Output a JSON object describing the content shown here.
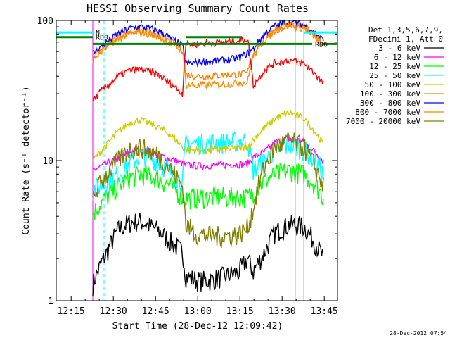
{
  "chart_data": {
    "type": "line",
    "title": "HESSI Observing Summary Count Rates",
    "xlabel": "Start Time (28-Dec-12 12:09:42)",
    "ylabel": "Count Rate (s⁻¹ detector⁻¹)",
    "yscale": "log",
    "ylim": [
      1,
      100
    ],
    "xlim_minutes": [
      0,
      100
    ],
    "x_ticks": [
      "12:15",
      "12:30",
      "12:45",
      "13:00",
      "13:15",
      "13:30",
      "13:45"
    ],
    "y_ticks": [
      "1",
      "10",
      "100"
    ],
    "legend_header": [
      "Det 1,3,5,6,7,9,",
      "FDecimi 1, Att 0"
    ],
    "footer_timestamp": "28-Dec-2012 07:54",
    "annotations": [
      "N",
      "RD0",
      "RD6"
    ],
    "series": [
      {
        "name": "3 - 6 keV",
        "color": "#000000",
        "x": [
          13,
          18,
          22,
          26,
          30,
          36,
          41,
          45,
          46,
          50,
          55,
          60,
          65,
          68,
          70,
          74,
          78,
          83,
          88,
          92,
          95
        ],
        "y": [
          1.3,
          2.2,
          3.2,
          3.6,
          3.7,
          3.2,
          2.6,
          2.2,
          1.5,
          1.4,
          1.4,
          1.5,
          1.6,
          2.0,
          1.6,
          2.2,
          3.1,
          3.5,
          3.4,
          2.6,
          2.0
        ]
      },
      {
        "name": "6 - 12 keV",
        "color": "#ff00ff",
        "x": [
          13,
          18,
          22,
          26,
          30,
          36,
          41,
          45,
          46,
          50,
          55,
          60,
          65,
          68,
          70,
          74,
          78,
          83,
          88,
          92,
          95
        ],
        "y": [
          8.5,
          9.5,
          10.3,
          11.5,
          12,
          11,
          10.2,
          9.5,
          9.3,
          9.2,
          9.2,
          9.3,
          9.4,
          9.5,
          10.5,
          11.5,
          13.5,
          14.5,
          13.5,
          11.5,
          10
        ]
      },
      {
        "name": "12 - 25 keV",
        "color": "#00ff00",
        "x": [
          13,
          18,
          22,
          26,
          30,
          36,
          41,
          45,
          46,
          50,
          55,
          60,
          65,
          68,
          70,
          74,
          78,
          83,
          88,
          92,
          95
        ],
        "y": [
          4.2,
          5.5,
          6.5,
          7.5,
          8,
          7.5,
          6.5,
          5.5,
          5.4,
          5.4,
          5.5,
          5.5,
          5.5,
          5.5,
          6,
          7.2,
          8,
          8.5,
          8,
          6.8,
          5.5
        ]
      },
      {
        "name": "25 - 50 keV",
        "color": "#00ffff",
        "x": [
          13,
          18,
          22,
          26,
          30,
          36,
          41,
          45,
          46,
          50,
          55,
          60,
          65,
          68,
          70,
          74,
          78,
          83,
          88,
          92,
          95
        ],
        "y": [
          6.2,
          7,
          8,
          9.5,
          11,
          10,
          8.2,
          7,
          13.2,
          13.3,
          13.5,
          13.5,
          13.8,
          14,
          8.5,
          10,
          12,
          13,
          12,
          10,
          8
        ]
      },
      {
        "name": "50 - 100 keV",
        "color": "#cccc00",
        "x": [
          13,
          18,
          22,
          26,
          30,
          36,
          41,
          45,
          46,
          50,
          55,
          60,
          65,
          68,
          70,
          74,
          78,
          83,
          88,
          92,
          95
        ],
        "y": [
          10,
          13,
          16,
          18.5,
          19.5,
          17.5,
          15,
          12.5,
          12,
          11.8,
          11.8,
          12,
          12.2,
          12.5,
          14,
          17,
          20,
          22,
          20,
          16,
          13
        ]
      },
      {
        "name": "100 - 300 keV",
        "color": "#ff8000",
        "x": [
          13,
          18,
          22,
          26,
          30,
          36,
          41,
          45,
          46,
          50,
          55,
          60,
          65,
          68,
          70,
          74,
          78,
          83,
          88,
          92,
          95
        ],
        "y": [
          55,
          67,
          77,
          83,
          85,
          80,
          70,
          62,
          41,
          40,
          40,
          41,
          41,
          42,
          58,
          75,
          88,
          95,
          90,
          78,
          68
        ]
      },
      {
        "name": "300 - 800 keV",
        "color": "#0000ff",
        "x": [
          13,
          18,
          22,
          26,
          30,
          36,
          41,
          45,
          46,
          50,
          55,
          60,
          65,
          68,
          70,
          74,
          78,
          83,
          88,
          92,
          95
        ],
        "y": [
          58,
          70,
          80,
          88,
          90,
          85,
          74,
          65,
          49,
          50,
          51,
          52,
          54,
          58,
          62,
          80,
          92,
          98,
          93,
          82,
          72
        ]
      },
      {
        "name": "800 - 7000 keV",
        "color": "#ff8800",
        "x": [
          13,
          18,
          22,
          26,
          30,
          36,
          41,
          45,
          46,
          50,
          55,
          60,
          65,
          68,
          70,
          74,
          78,
          83,
          88,
          92,
          95
        ],
        "y": [
          52,
          65,
          74,
          80,
          82,
          77,
          68,
          60,
          35,
          34,
          35,
          35,
          36,
          36,
          55,
          72,
          85,
          92,
          88,
          76,
          66
        ]
      },
      {
        "name": "7000 - 20000 keV",
        "color": "#808000",
        "x": [
          13,
          18,
          22,
          26,
          30,
          36,
          41,
          45,
          46,
          50,
          55,
          60,
          65,
          68,
          70,
          74,
          78,
          83,
          88,
          92,
          95
        ],
        "y": [
          5.5,
          8,
          10,
          12,
          12.5,
          11,
          8.5,
          6.5,
          3.5,
          3.0,
          2.9,
          2.9,
          3.0,
          3.3,
          4.5,
          9,
          12.5,
          14,
          12.5,
          9,
          6.5
        ]
      },
      {
        "name": "",
        "color": "#ff0000",
        "x": [
          13,
          18,
          22,
          26,
          30,
          36,
          41,
          45,
          46,
          50,
          55,
          60,
          65,
          68,
          70,
          74,
          78,
          83,
          88,
          92,
          95
        ],
        "y": [
          27,
          34,
          40,
          44,
          45,
          41,
          35,
          30,
          68,
          68,
          69,
          70,
          72,
          74,
          34,
          44,
          50,
          52,
          49,
          42,
          35
        ]
      }
    ],
    "markers": [
      {
        "name": "N",
        "color": "#00ffff",
        "x_start": 0,
        "x_end": 13,
        "y": 82,
        "x2_start": 88,
        "x2_end": 100
      },
      {
        "name": "RD0",
        "color": "#008000",
        "x_start": 0,
        "x_end": 13,
        "y": 76,
        "x2_start": 46,
        "x2_end": 66
      },
      {
        "name": "RD6",
        "color": "#008000",
        "x_start": 13,
        "x_end": 91,
        "y": 68,
        "x2_start": 95,
        "x2_end": 100
      }
    ],
    "vlines_solid": [
      {
        "x": 0,
        "color": "#00ffff"
      },
      {
        "x": 85,
        "color": "#00ffff"
      },
      {
        "x": 88,
        "color": "#00ffff"
      },
      {
        "x": 13,
        "color": "#ff00ff"
      }
    ],
    "vlines_dashed": [
      {
        "x": 17,
        "color": "#00ffff"
      },
      {
        "x": 100,
        "color": "#00ffff"
      }
    ]
  }
}
